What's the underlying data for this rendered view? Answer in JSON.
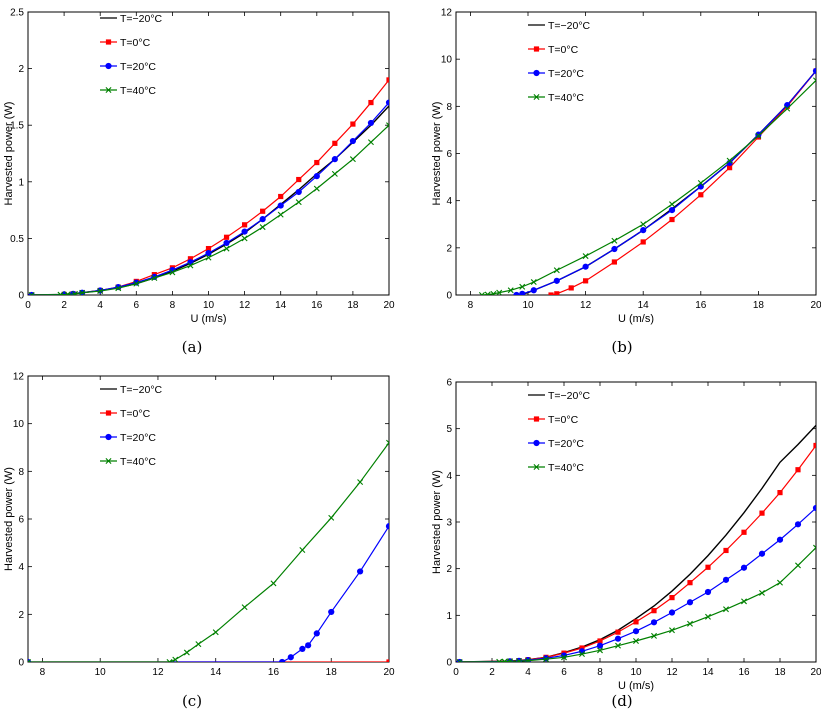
{
  "figure": {
    "legend_labels": [
      "T=−20°C",
      "T=0°C",
      "T=20°C",
      "T=40°C"
    ],
    "colors": {
      "T=-20": "#000000",
      "T=0": "#ff0000",
      "T=20": "#0000ff",
      "T=40": "#008000"
    }
  },
  "chart_data": [
    {
      "id": "a",
      "type": "line",
      "caption": "(a)",
      "xlabel": "U (m/s)",
      "ylabel": "Harvested power (W)",
      "xlim": [
        0,
        20
      ],
      "ylim": [
        0,
        2.5
      ],
      "xticks": [
        0,
        2,
        4,
        6,
        8,
        10,
        12,
        14,
        16,
        18,
        20
      ],
      "yticks": [
        0,
        0.5,
        1,
        1.5,
        2,
        2.5
      ],
      "ytick_labels": [
        "0",
        "0.5",
        "1",
        "1.5",
        "2",
        "2.5"
      ],
      "legend": "top-left",
      "series": [
        {
          "name": "T=−20°C",
          "key": "T=-20",
          "marker": "none",
          "x": [
            0.2,
            2,
            3,
            4,
            5,
            6,
            7,
            8,
            9,
            10,
            11,
            12,
            13,
            14,
            15,
            16,
            17,
            18,
            19,
            20
          ],
          "y": [
            0,
            0.005,
            0.02,
            0.04,
            0.065,
            0.1,
            0.15,
            0.21,
            0.28,
            0.36,
            0.45,
            0.55,
            0.67,
            0.8,
            0.93,
            1.07,
            1.2,
            1.35,
            1.5,
            1.67
          ]
        },
        {
          "name": "T=0°C",
          "key": "T=0",
          "marker": "square",
          "x": [
            0.2,
            2,
            2.5,
            3,
            4,
            5,
            6,
            7,
            8,
            9,
            10,
            11,
            12,
            13,
            14,
            15,
            16,
            17,
            18,
            19,
            20
          ],
          "y": [
            0,
            0.005,
            0.01,
            0.02,
            0.04,
            0.07,
            0.12,
            0.18,
            0.24,
            0.32,
            0.41,
            0.51,
            0.62,
            0.74,
            0.87,
            1.02,
            1.17,
            1.34,
            1.51,
            1.7,
            1.9
          ]
        },
        {
          "name": "T=20°C",
          "key": "T=20",
          "marker": "circle",
          "x": [
            0.2,
            2,
            2.5,
            3,
            4,
            5,
            6,
            7,
            8,
            9,
            10,
            11,
            12,
            13,
            14,
            15,
            16,
            17,
            18,
            19,
            20
          ],
          "y": [
            0,
            0.005,
            0.01,
            0.02,
            0.04,
            0.07,
            0.11,
            0.16,
            0.22,
            0.29,
            0.37,
            0.46,
            0.56,
            0.67,
            0.79,
            0.91,
            1.05,
            1.2,
            1.36,
            1.52,
            1.7
          ]
        },
        {
          "name": "T=40°C",
          "key": "T=40",
          "marker": "x",
          "x": [
            0.2,
            1.8,
            2.2,
            2.6,
            3,
            4,
            5,
            6,
            7,
            8,
            9,
            10,
            11,
            12,
            13,
            14,
            15,
            16,
            17,
            18,
            19,
            20
          ],
          "y": [
            0,
            0.003,
            0.006,
            0.01,
            0.02,
            0.035,
            0.06,
            0.1,
            0.15,
            0.2,
            0.26,
            0.33,
            0.41,
            0.5,
            0.6,
            0.71,
            0.82,
            0.94,
            1.07,
            1.2,
            1.35,
            1.5
          ]
        }
      ]
    },
    {
      "id": "b",
      "type": "line",
      "caption": "(b)",
      "xlabel": "U (m/s)",
      "ylabel": "Harvested power (W)",
      "xlim": [
        7.5,
        20
      ],
      "ylim": [
        0,
        12
      ],
      "xticks": [
        8,
        10,
        12,
        14,
        16,
        18,
        20
      ],
      "yticks": [
        0,
        2,
        4,
        6,
        8,
        10,
        12
      ],
      "ytick_labels": [
        "0",
        "2",
        "4",
        "6",
        "8",
        "10",
        "12"
      ],
      "legend": "top-left",
      "series": [
        {
          "name": "T=−20°C",
          "key": "T=-20",
          "marker": "none",
          "x": [
            9.7,
            10,
            11,
            12,
            13,
            14,
            15,
            16,
            17,
            18,
            19,
            20
          ],
          "y": [
            0,
            0.1,
            0.6,
            1.2,
            1.95,
            2.75,
            3.65,
            4.6,
            5.6,
            6.8,
            8.05,
            9.5
          ]
        },
        {
          "name": "T=0°C",
          "key": "T=0",
          "marker": "square",
          "x": [
            10.8,
            11,
            11.5,
            12,
            13,
            14,
            15,
            16,
            17,
            18,
            19,
            20
          ],
          "y": [
            0,
            0.05,
            0.3,
            0.6,
            1.4,
            2.25,
            3.2,
            4.25,
            5.4,
            6.7,
            8.0,
            9.5
          ]
        },
        {
          "name": "T=20°C",
          "key": "T=20",
          "marker": "circle",
          "x": [
            9.6,
            9.8,
            10.2,
            11,
            12,
            13,
            14,
            15,
            16,
            17,
            18,
            19,
            20
          ],
          "y": [
            0,
            0.05,
            0.2,
            0.6,
            1.2,
            1.95,
            2.75,
            3.6,
            4.6,
            5.6,
            6.8,
            8.05,
            9.5
          ]
        },
        {
          "name": "T=40°C",
          "key": "T=40",
          "marker": "x",
          "x": [
            8.4,
            8.6,
            8.8,
            9.0,
            9.4,
            9.8,
            10.2,
            11,
            12,
            13,
            14,
            15,
            16,
            17,
            18,
            19,
            20
          ],
          "y": [
            0,
            0.02,
            0.05,
            0.1,
            0.2,
            0.35,
            0.55,
            1.05,
            1.65,
            2.3,
            3.0,
            3.85,
            4.75,
            5.7,
            6.75,
            7.9,
            9.1
          ]
        }
      ]
    },
    {
      "id": "c",
      "type": "line",
      "caption": "(c)",
      "xlabel": "",
      "ylabel": "Harvested power (W)",
      "xlim": [
        7.5,
        20
      ],
      "ylim": [
        0,
        12
      ],
      "xticks": [
        8,
        10,
        12,
        14,
        16,
        18,
        20
      ],
      "yticks": [
        0,
        2,
        4,
        6,
        8,
        10,
        12
      ],
      "ytick_labels": [
        "0",
        "2",
        "4",
        "6",
        "8",
        "10",
        "12"
      ],
      "legend": "top-left",
      "series": [
        {
          "name": "T=−20°C",
          "key": "T=-20",
          "marker": "none",
          "x": [],
          "y": []
        },
        {
          "name": "T=0°C",
          "key": "T=0",
          "marker": "square",
          "x": [
            7.5,
            20
          ],
          "y": [
            0,
            0
          ]
        },
        {
          "name": "T=20°C",
          "key": "T=20",
          "marker": "circle",
          "x": [
            7.5,
            16.3,
            16.6,
            17.0,
            17.2,
            17.5,
            18,
            19,
            20
          ],
          "y": [
            0,
            0,
            0.2,
            0.55,
            0.7,
            1.2,
            2.1,
            3.8,
            5.7
          ]
        },
        {
          "name": "T=40°C",
          "key": "T=40",
          "marker": "x",
          "x": [
            7.5,
            12.4,
            12.6,
            13,
            13.4,
            14,
            15,
            16,
            17,
            18,
            19,
            20
          ],
          "y": [
            0,
            0,
            0.1,
            0.4,
            0.75,
            1.25,
            2.3,
            3.3,
            4.7,
            6.05,
            7.55,
            9.2
          ]
        }
      ]
    },
    {
      "id": "d",
      "type": "line",
      "caption": "(d)",
      "xlabel": "U (m/s)",
      "ylabel": "Harvested power (W)",
      "xlim": [
        0,
        20
      ],
      "ylim": [
        0,
        6
      ],
      "xticks": [
        0,
        2,
        4,
        6,
        8,
        10,
        12,
        14,
        16,
        18,
        20
      ],
      "yticks": [
        0,
        1,
        2,
        3,
        4,
        5,
        6
      ],
      "ytick_labels": [
        "0",
        "1",
        "2",
        "3",
        "4",
        "5",
        "6"
      ],
      "legend": "top-left",
      "series": [
        {
          "name": "T=−20°C",
          "key": "T=-20",
          "marker": "none",
          "x": [
            0.2,
            3,
            4,
            5,
            6,
            7,
            8,
            9,
            10,
            11,
            12,
            13,
            14,
            15,
            16,
            17,
            18,
            19,
            20
          ],
          "y": [
            0,
            0.02,
            0.05,
            0.1,
            0.2,
            0.32,
            0.48,
            0.68,
            0.93,
            1.2,
            1.52,
            1.88,
            2.28,
            2.72,
            3.2,
            3.72,
            4.28,
            4.66,
            5.07
          ]
        },
        {
          "name": "T=0°C",
          "key": "T=0",
          "marker": "square",
          "x": [
            0.2,
            3,
            3.5,
            4,
            5,
            6,
            7,
            8,
            9,
            10,
            11,
            12,
            13,
            14,
            15,
            16,
            17,
            18,
            19,
            20
          ],
          "y": [
            0,
            0.02,
            0.03,
            0.05,
            0.1,
            0.19,
            0.3,
            0.45,
            0.64,
            0.86,
            1.1,
            1.38,
            1.7,
            2.03,
            2.39,
            2.78,
            3.19,
            3.63,
            4.12,
            4.64
          ]
        },
        {
          "name": "T=20°C",
          "key": "T=20",
          "marker": "circle",
          "x": [
            0.2,
            3,
            3.5,
            4,
            5,
            6,
            7,
            8,
            9,
            10,
            11,
            12,
            13,
            14,
            15,
            16,
            17,
            18,
            19,
            20
          ],
          "y": [
            0,
            0.015,
            0.025,
            0.04,
            0.08,
            0.14,
            0.23,
            0.35,
            0.5,
            0.66,
            0.85,
            1.06,
            1.28,
            1.5,
            1.76,
            2.02,
            2.32,
            2.62,
            2.95,
            3.3
          ]
        },
        {
          "name": "T=40°C",
          "key": "T=40",
          "marker": "x",
          "x": [
            0.2,
            2.4,
            2.7,
            3,
            3.5,
            4,
            5,
            6,
            7,
            8,
            9,
            10,
            11,
            12,
            13,
            14,
            15,
            16,
            17,
            18,
            19,
            20
          ],
          "y": [
            0,
            0.005,
            0.01,
            0.015,
            0.02,
            0.03,
            0.06,
            0.1,
            0.17,
            0.25,
            0.35,
            0.45,
            0.56,
            0.68,
            0.82,
            0.97,
            1.13,
            1.3,
            1.48,
            1.7,
            2.07,
            2.45
          ]
        }
      ]
    }
  ]
}
